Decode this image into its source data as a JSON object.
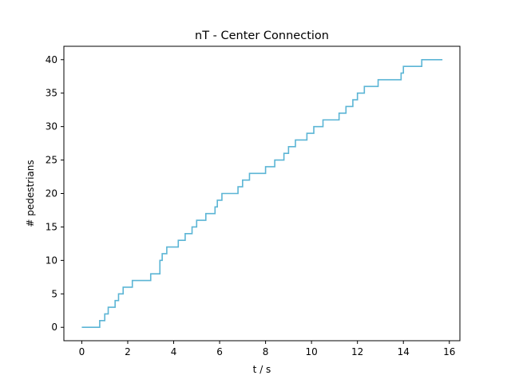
{
  "chart_data": {
    "type": "line",
    "title": "nT - Center Connection",
    "xlabel": "t / s",
    "ylabel": "# pedestrians",
    "xlim": [
      -0.78,
      16.46
    ],
    "ylim": [
      -2,
      42
    ],
    "xticks": [
      0,
      2,
      4,
      6,
      8,
      10,
      12,
      14,
      16
    ],
    "yticks": [
      0,
      5,
      10,
      15,
      20,
      25,
      30,
      35,
      40
    ],
    "grid": false,
    "legend": "none",
    "series": [
      {
        "color": "#5bb5d5",
        "step": "post",
        "x": [
          0.0,
          0.78,
          1.0,
          1.15,
          1.3,
          1.45,
          1.6,
          1.8,
          2.2,
          3.0,
          3.4,
          3.5,
          3.6,
          3.7,
          4.2,
          4.5,
          4.8,
          5.0,
          5.4,
          5.8,
          5.9,
          6.1,
          6.8,
          7.0,
          7.3,
          7.6,
          8.0,
          8.1,
          8.4,
          8.8,
          8.9,
          9.0,
          9.3,
          9.8,
          10.1,
          10.5,
          11.2,
          11.5,
          11.8,
          12.0,
          12.3,
          12.9,
          13.9,
          14.0,
          14.8,
          15.7
        ],
        "y": [
          0,
          1,
          2,
          3,
          3,
          4,
          5,
          6,
          7,
          8,
          10,
          11,
          11,
          12,
          13,
          14,
          15,
          16,
          17,
          18,
          19,
          20,
          21,
          22,
          23,
          23,
          24,
          24,
          25,
          26,
          26,
          27,
          28,
          29,
          30,
          31,
          32,
          33,
          34,
          35,
          36,
          37,
          38,
          39,
          40,
          40
        ]
      }
    ]
  }
}
